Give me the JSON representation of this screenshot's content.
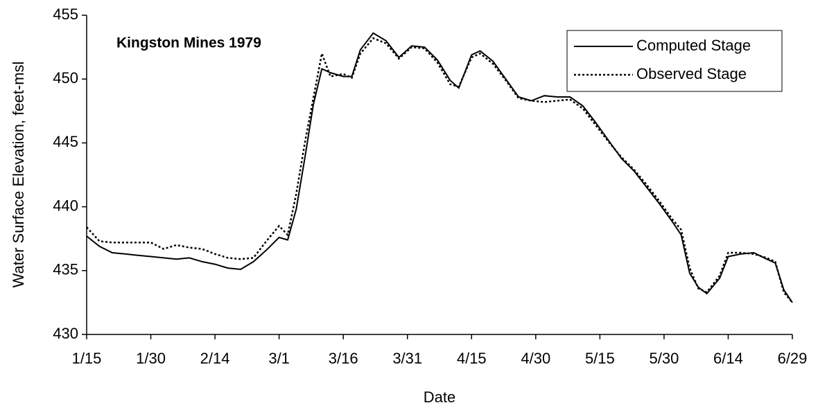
{
  "chart_data": {
    "type": "line",
    "annotation": "Kingston Mines 1979",
    "x_label": "Date",
    "y_label": "Water Surface Elevation, feet-msl",
    "x": [
      "1/15",
      "1/18",
      "1/21",
      "1/24",
      "1/27",
      "1/30",
      "2/2",
      "2/5",
      "2/8",
      "2/11",
      "2/14",
      "2/17",
      "2/20",
      "2/23",
      "2/26",
      "3/1",
      "3/3",
      "3/5",
      "3/7",
      "3/9",
      "3/11",
      "3/13",
      "3/16",
      "3/18",
      "3/20",
      "3/23",
      "3/26",
      "3/29",
      "4/1",
      "4/4",
      "4/7",
      "4/10",
      "4/12",
      "4/15",
      "4/17",
      "4/20",
      "4/23",
      "4/26",
      "4/29",
      "5/2",
      "5/5",
      "5/8",
      "5/11",
      "5/14",
      "5/17",
      "5/20",
      "5/23",
      "5/26",
      "5/29",
      "6/1",
      "6/3",
      "6/5",
      "6/7",
      "6/9",
      "6/12",
      "6/14",
      "6/17",
      "6/20",
      "6/23",
      "6/25",
      "6/27",
      "6/29"
    ],
    "series": [
      {
        "name": "Computed Stage",
        "color": "#000000",
        "line_style": "solid",
        "values": [
          437.7,
          436.9,
          436.4,
          436.3,
          436.2,
          436.1,
          436.0,
          435.9,
          436.0,
          435.7,
          435.5,
          435.2,
          435.1,
          435.7,
          436.6,
          437.6,
          437.4,
          439.8,
          443.8,
          448.0,
          450.8,
          450.5,
          450.2,
          450.2,
          452.3,
          453.6,
          453.0,
          451.7,
          452.6,
          452.5,
          451.5,
          449.9,
          449.3,
          451.9,
          452.2,
          451.4,
          450.0,
          448.6,
          448.3,
          448.7,
          448.6,
          448.6,
          447.9,
          446.6,
          445.2,
          443.8,
          442.8,
          441.5,
          440.2,
          438.8,
          437.8,
          434.8,
          433.7,
          433.2,
          434.4,
          436.1,
          436.3,
          436.4,
          435.9,
          435.6,
          433.5,
          432.5
        ]
      },
      {
        "name": "Observed Stage",
        "color": "#000000",
        "line_style": "dotted",
        "values": [
          438.4,
          437.3,
          437.2,
          437.2,
          437.2,
          437.2,
          436.7,
          437.0,
          436.8,
          436.7,
          436.3,
          436.0,
          435.9,
          436.0,
          437.3,
          438.5,
          437.8,
          441.0,
          445.0,
          448.5,
          452.0,
          450.2,
          450.4,
          450.1,
          452.0,
          453.2,
          452.8,
          451.6,
          452.5,
          452.4,
          451.3,
          449.6,
          449.4,
          451.7,
          452.0,
          451.2,
          449.9,
          448.5,
          448.3,
          448.2,
          448.3,
          448.4,
          447.7,
          446.4,
          445.1,
          443.9,
          442.9,
          441.7,
          440.4,
          439.0,
          438.2,
          435.2,
          433.6,
          433.3,
          434.6,
          436.4,
          436.4,
          436.3,
          436.0,
          435.7,
          433.3,
          432.5
        ]
      }
    ],
    "xlim": [
      "1/15",
      "6/29"
    ],
    "xticks": [
      "1/15",
      "1/30",
      "2/14",
      "3/1",
      "3/16",
      "3/31",
      "4/15",
      "4/30",
      "5/15",
      "5/30",
      "6/14",
      "6/29"
    ],
    "ylim": [
      430,
      455
    ],
    "yticks": [
      430,
      435,
      440,
      445,
      450,
      455
    ],
    "grid": false,
    "legend": "upper right"
  }
}
